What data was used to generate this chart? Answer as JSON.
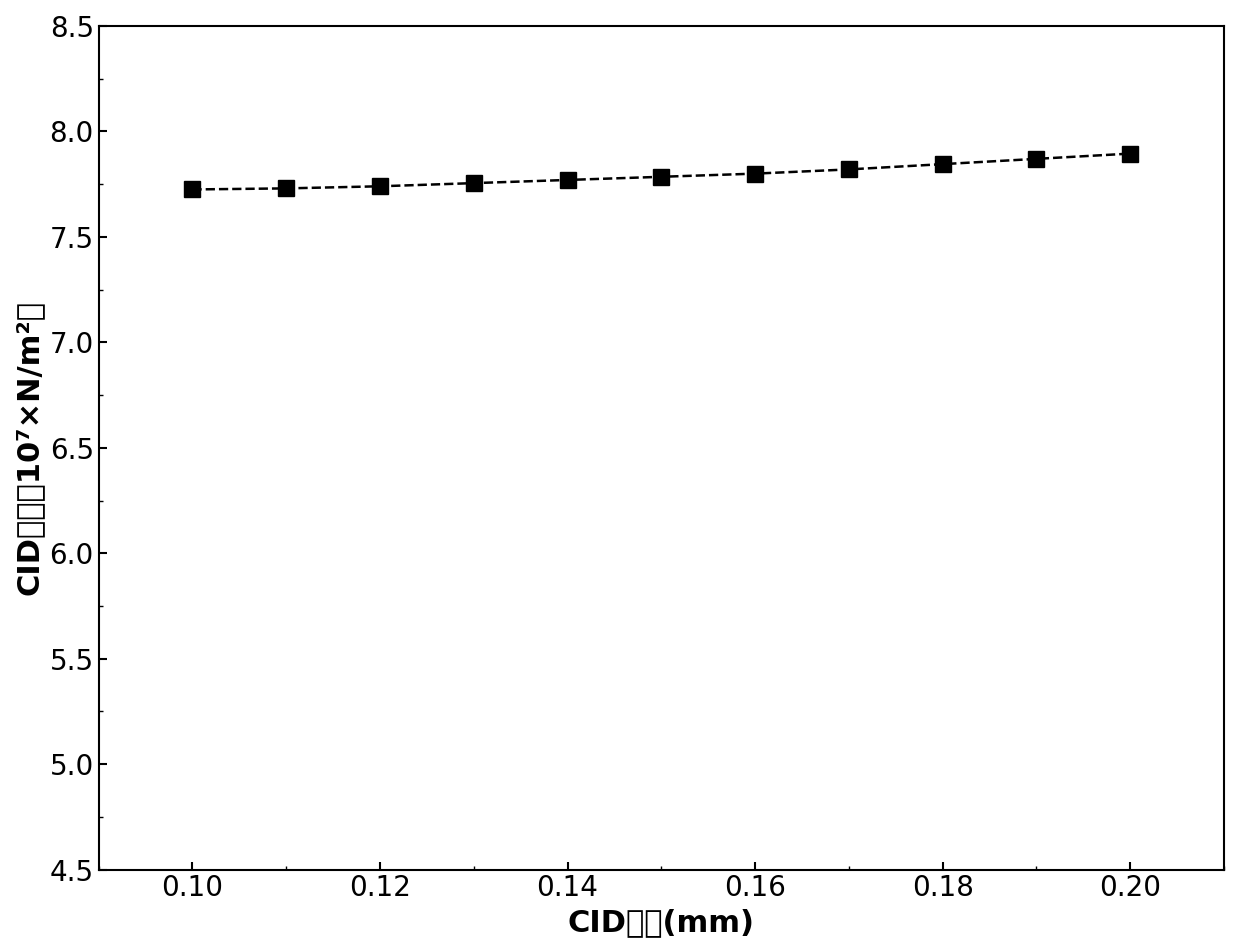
{
  "x": [
    0.1,
    0.11,
    0.12,
    0.13,
    0.14,
    0.15,
    0.16,
    0.17,
    0.18,
    0.19,
    0.2
  ],
  "y": [
    7.725,
    7.73,
    7.74,
    7.755,
    7.77,
    7.785,
    7.8,
    7.82,
    7.845,
    7.87,
    7.895
  ],
  "xlabel": "CID高度(mm)",
  "ylabel": "CID应力（10⁷×N/m²）",
  "xlim": [
    0.09,
    0.21
  ],
  "ylim": [
    4.5,
    8.5
  ],
  "xticks": [
    0.1,
    0.12,
    0.14,
    0.16,
    0.18,
    0.2
  ],
  "yticks": [
    4.5,
    5.0,
    5.5,
    6.0,
    6.5,
    7.0,
    7.5,
    8.0,
    8.5
  ],
  "line_color": "#000000",
  "marker": "s",
  "marker_size": 12,
  "line_style": "--",
  "line_width": 1.8,
  "background_color": "#ffffff",
  "xlabel_fontsize": 22,
  "ylabel_fontsize": 22,
  "tick_fontsize": 20
}
